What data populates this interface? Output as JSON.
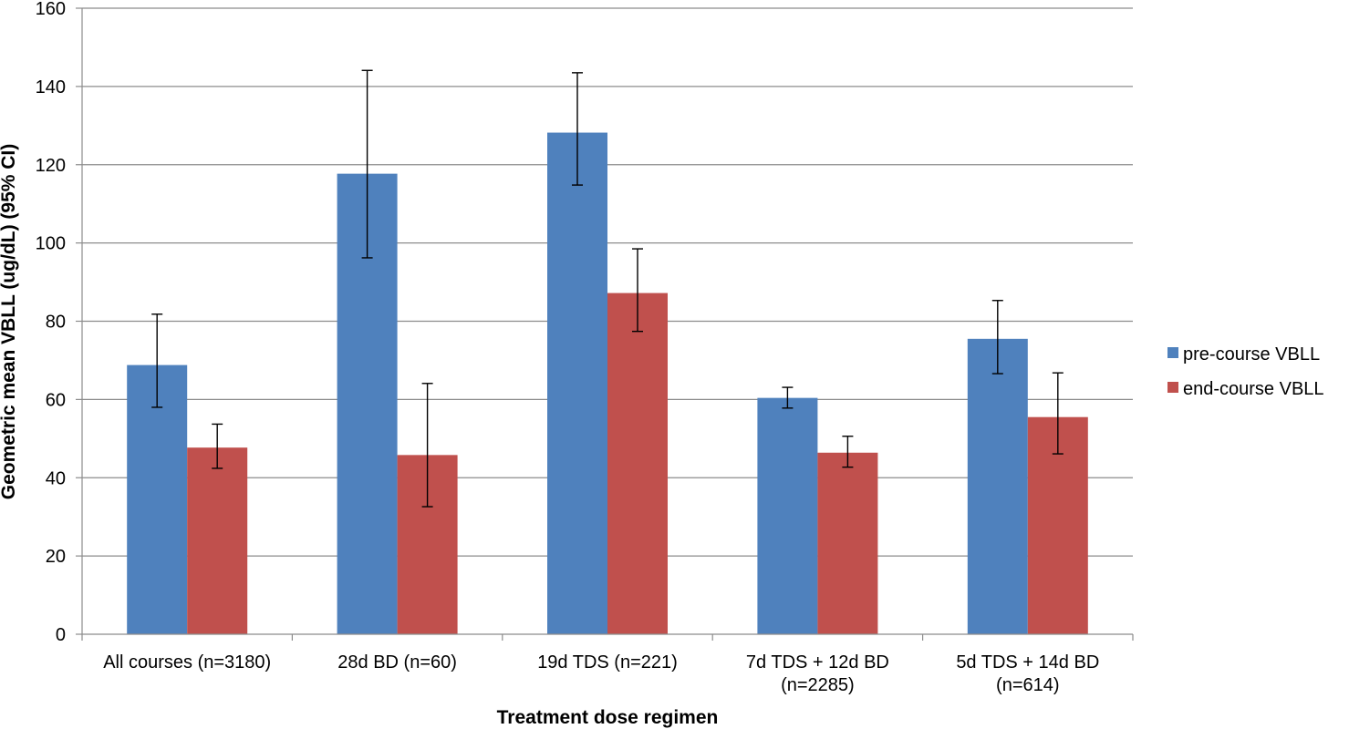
{
  "chart_data": {
    "type": "bar",
    "title": "",
    "xlabel": "Treatment dose regimen",
    "ylabel": "Geometric mean VBLL (ug/dL) (95% CI)",
    "ylim": [
      0,
      160
    ],
    "yticks": [
      0,
      20,
      40,
      60,
      80,
      100,
      120,
      140,
      160
    ],
    "grid": true,
    "legend_position": "right",
    "categories": [
      [
        "All courses (n=3180)"
      ],
      [
        "28d BD (n=60)"
      ],
      [
        "19d TDS (n=221)"
      ],
      [
        "7d TDS + 12d BD",
        "(n=2285)"
      ],
      [
        "5d TDS + 14d BD",
        "(n=614)"
      ]
    ],
    "series": [
      {
        "name": "pre-course VBLL",
        "color": "#4F81BD",
        "values": [
          68.8,
          117.7,
          128.2,
          60.4,
          75.5
        ],
        "ci_low": [
          58.0,
          96.2,
          114.8,
          57.8,
          66.6
        ],
        "ci_high": [
          81.8,
          144.1,
          143.5,
          63.1,
          85.3
        ]
      },
      {
        "name": "end-course VBLL",
        "color": "#C0504D",
        "values": [
          47.7,
          45.8,
          87.2,
          46.4,
          55.5
        ],
        "ci_low": [
          42.4,
          32.6,
          77.4,
          42.7,
          46.1
        ],
        "ci_high": [
          53.7,
          64.1,
          98.5,
          50.6,
          66.8
        ]
      }
    ]
  }
}
